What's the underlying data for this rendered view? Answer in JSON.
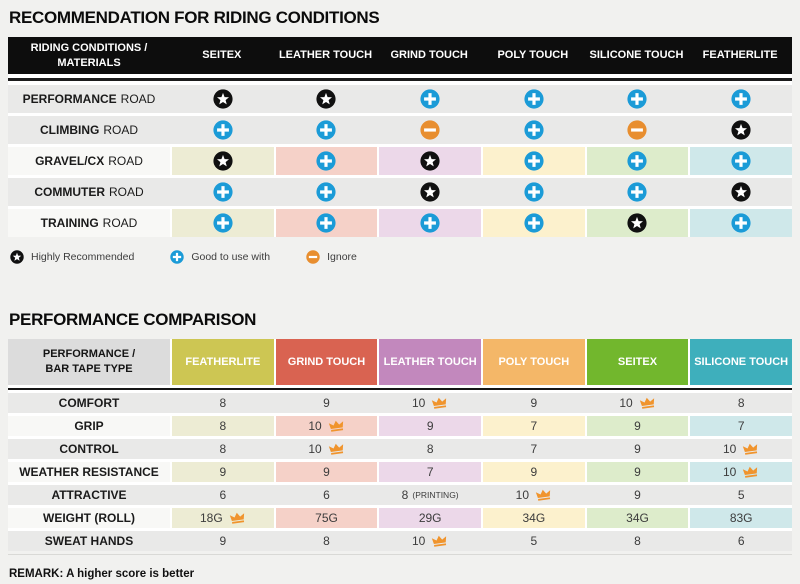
{
  "icons": {
    "star": {
      "meaning": "Highly Recommended",
      "color": "#101010"
    },
    "plus": {
      "meaning": "Good to use with",
      "color": "#1b9bd7"
    },
    "minus": {
      "meaning": "Ignore",
      "color": "#e88e2f"
    },
    "crown": {
      "meaning": "Best in row",
      "color": "#f0942d"
    }
  },
  "section1": {
    "title": "RECOMMENDATION FOR RIDING CONDITIONS",
    "table": {
      "header_label": {
        "line1": "RIDING CONDITIONS /",
        "line2": "MATERIALS"
      },
      "columns": [
        "SEITEX",
        "LEATHER TOUCH",
        "GRIND TOUCH",
        "POLY TOUCH",
        "SILICONE TOUCH",
        "FEATHERLITE"
      ],
      "column_tints": [
        "#edecd4",
        "#f5d1c8",
        "#ecd8e9",
        "#fcf1cd",
        "#ddeccb",
        "#cfe8ea"
      ],
      "rows": [
        {
          "label_bold": "PERFORMANCE",
          "label_rest": "ROAD",
          "tinted": false,
          "cells": [
            "star",
            "star",
            "plus",
            "plus",
            "plus",
            "plus"
          ]
        },
        {
          "label_bold": "CLIMBING",
          "label_rest": "ROAD",
          "tinted": false,
          "cells": [
            "plus",
            "plus",
            "minus",
            "plus",
            "minus",
            "star"
          ]
        },
        {
          "label_bold": "GRAVEL/CX",
          "label_rest": "ROAD",
          "tinted": true,
          "cells": [
            "star",
            "plus",
            "star",
            "plus",
            "plus",
            "plus"
          ]
        },
        {
          "label_bold": "COMMUTER",
          "label_rest": "ROAD",
          "tinted": false,
          "cells": [
            "plus",
            "plus",
            "star",
            "plus",
            "plus",
            "star"
          ]
        },
        {
          "label_bold": "TRAINING",
          "label_rest": "ROAD",
          "tinted": true,
          "cells": [
            "plus",
            "plus",
            "plus",
            "plus",
            "star",
            "plus"
          ]
        }
      ]
    },
    "legend": [
      {
        "icon": "star",
        "label": "Highly Recommended"
      },
      {
        "icon": "plus",
        "label": "Good to use with"
      },
      {
        "icon": "minus",
        "label": "Ignore"
      }
    ]
  },
  "section2": {
    "title": "PERFORMANCE COMPARISON",
    "table": {
      "header_label": {
        "line1": "PERFORMANCE /",
        "line2": "BAR TAPE TYPE"
      },
      "columns": [
        {
          "label": "FEATHERLITE",
          "color": "#cdc653",
          "tint": "#edecd4"
        },
        {
          "label": "GRIND TOUCH",
          "color": "#d96351",
          "tint": "#f5d1c8"
        },
        {
          "label": "LEATHER TOUCH",
          "color": "#c288bd",
          "tint": "#ecd8e9"
        },
        {
          "label": "POLY TOUCH",
          "color": "#f4b768",
          "tint": "#fcf1cd"
        },
        {
          "label": "SEITEX",
          "color": "#72b72d",
          "tint": "#ddeccb"
        },
        {
          "label": "SILICONE TOUCH",
          "color": "#3eafbc",
          "tint": "#cfe8ea"
        }
      ],
      "rows": [
        {
          "label": "COMFORT",
          "tinted": false,
          "cells": [
            {
              "v": "8"
            },
            {
              "v": "9"
            },
            {
              "v": "10",
              "crown": true
            },
            {
              "v": "9"
            },
            {
              "v": "10",
              "crown": true
            },
            {
              "v": "8"
            }
          ]
        },
        {
          "label": "GRIP",
          "tinted": true,
          "cells": [
            {
              "v": "8"
            },
            {
              "v": "10",
              "crown": true
            },
            {
              "v": "9"
            },
            {
              "v": "7"
            },
            {
              "v": "9"
            },
            {
              "v": "7"
            }
          ]
        },
        {
          "label": "CONTROL",
          "tinted": false,
          "cells": [
            {
              "v": "8"
            },
            {
              "v": "10",
              "crown": true
            },
            {
              "v": "8"
            },
            {
              "v": "7"
            },
            {
              "v": "9"
            },
            {
              "v": "10",
              "crown": true
            }
          ]
        },
        {
          "label": "WEATHER RESISTANCE",
          "tinted": true,
          "cells": [
            {
              "v": "9"
            },
            {
              "v": "9"
            },
            {
              "v": "7"
            },
            {
              "v": "9"
            },
            {
              "v": "9"
            },
            {
              "v": "10",
              "crown": true
            }
          ]
        },
        {
          "label": "ATTRACTIVE",
          "tinted": false,
          "cells": [
            {
              "v": "6"
            },
            {
              "v": "6"
            },
            {
              "v": "8",
              "suffix": "(PRINTING)"
            },
            {
              "v": "10",
              "crown": true
            },
            {
              "v": "9"
            },
            {
              "v": "5"
            }
          ]
        },
        {
          "label": "WEIGHT (ROLL)",
          "tinted": true,
          "cells": [
            {
              "v": "18G",
              "crown": true
            },
            {
              "v": "75G"
            },
            {
              "v": "29G"
            },
            {
              "v": "34G"
            },
            {
              "v": "34G"
            },
            {
              "v": "83G"
            }
          ]
        },
        {
          "label": "SWEAT HANDS",
          "tinted": false,
          "cells": [
            {
              "v": "9"
            },
            {
              "v": "8"
            },
            {
              "v": "10",
              "crown": true
            },
            {
              "v": "5"
            },
            {
              "v": "8"
            },
            {
              "v": "6"
            }
          ]
        }
      ]
    },
    "remark": "REMARK: A higher score is better"
  }
}
